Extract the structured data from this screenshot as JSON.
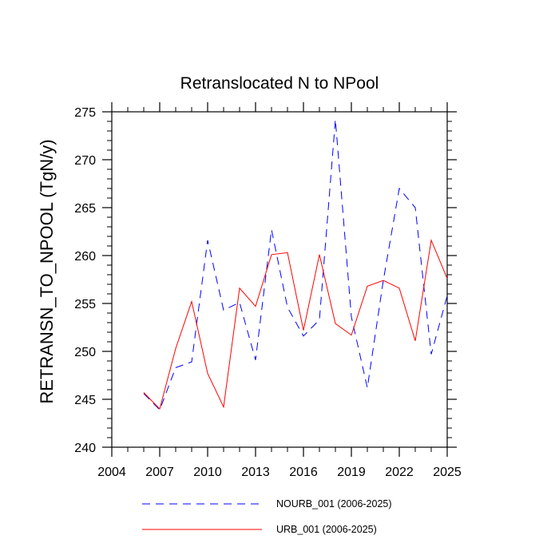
{
  "chart_data": {
    "type": "line",
    "title": "Retranslocated N to NPool",
    "ylabel": "RETRANSN_TO_NPOOL  (TgN/y)",
    "xlabel": "",
    "xlim": [
      2004,
      2025
    ],
    "ylim": [
      240,
      275
    ],
    "x_ticks": [
      2004,
      2007,
      2010,
      2013,
      2016,
      2019,
      2022,
      2025
    ],
    "y_ticks": [
      240,
      245,
      250,
      255,
      260,
      265,
      270,
      275
    ],
    "grid": false,
    "legend_position": "bottom",
    "x": [
      2006,
      2007,
      2008,
      2009,
      2010,
      2011,
      2012,
      2013,
      2014,
      2015,
      2016,
      2017,
      2018,
      2019,
      2020,
      2021,
      2022,
      2023,
      2024,
      2025
    ],
    "series": [
      {
        "name": "NOURB_001 (2006-2025)",
        "color": "#0000ff",
        "style": "dashed",
        "values": [
          245.6,
          243.9,
          248.3,
          248.9,
          261.6,
          254.3,
          255.1,
          249.1,
          262.7,
          254.6,
          251.6,
          253.3,
          274.2,
          253.6,
          246.2,
          257.4,
          267.0,
          265.0,
          249.7,
          255.8
        ]
      },
      {
        "name": "URB_001 (2006-2025)",
        "color": "#ff0000",
        "style": "solid",
        "values": [
          245.7,
          244.0,
          250.3,
          255.2,
          247.7,
          244.2,
          256.6,
          254.7,
          260.1,
          260.3,
          252.2,
          260.1,
          252.9,
          251.7,
          256.8,
          257.4,
          256.6,
          251.1,
          261.6,
          257.6
        ]
      }
    ]
  }
}
